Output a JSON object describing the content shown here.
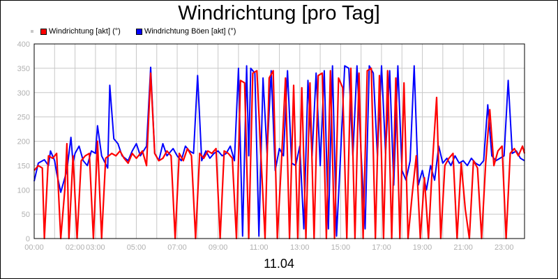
{
  "chart_data": {
    "type": "line",
    "title": "Windrichtung [pro Tag]",
    "xlabel": "11.04",
    "ylabel": "",
    "ylim": [
      0,
      400
    ],
    "xlim": [
      0,
      24
    ],
    "grid": true,
    "legend_placement": "top-left",
    "y_ticks": [
      "0",
      "50",
      "100",
      "150",
      "200",
      "250",
      "300",
      "350",
      "400"
    ],
    "x_ticks": [
      {
        "label": "00:00",
        "hour": 0
      },
      {
        "label": "02:00",
        "hour": 2
      },
      {
        "label": "03:00",
        "hour": 3
      },
      {
        "label": "05:00",
        "hour": 5
      },
      {
        "label": "07:00",
        "hour": 7
      },
      {
        "label": "09:00",
        "hour": 9
      },
      {
        "label": "11:00",
        "hour": 11
      },
      {
        "label": "13:00",
        "hour": 13
      },
      {
        "label": "15:00",
        "hour": 15
      },
      {
        "label": "17:00",
        "hour": 17
      },
      {
        "label": "19:00",
        "hour": 19
      },
      {
        "label": "21:00",
        "hour": 21
      },
      {
        "label": "23:00",
        "hour": 23
      }
    ],
    "grid_hours": [
      1,
      2,
      3,
      4,
      5,
      6,
      7,
      8,
      9,
      10,
      11,
      12,
      13,
      14,
      15,
      16,
      17,
      18,
      19,
      20,
      21,
      22,
      23
    ],
    "series": [
      {
        "name": "Windrichtung Böen [akt] (°)",
        "color": "#0000ff",
        "x": [
          0,
          0.2,
          0.5,
          0.7,
          0.8,
          1.0,
          1.1,
          1.3,
          1.6,
          1.8,
          1.9,
          2.0,
          2.2,
          2.4,
          2.6,
          2.8,
          3.0,
          3.1,
          3.3,
          3.6,
          3.7,
          3.9,
          4.1,
          4.3,
          4.6,
          4.8,
          5.0,
          5.2,
          5.5,
          5.7,
          5.9,
          6.1,
          6.3,
          6.5,
          6.8,
          7.0,
          7.2,
          7.4,
          7.6,
          7.8,
          8.0,
          8.2,
          8.4,
          8.6,
          8.8,
          9.0,
          9.2,
          9.4,
          9.6,
          9.8,
          10.0,
          10.2,
          10.4,
          10.5,
          10.6,
          10.8,
          11.0,
          11.2,
          11.4,
          11.6,
          11.8,
          12.0,
          12.2,
          12.4,
          12.6,
          12.8,
          13.0,
          13.2,
          13.4,
          13.6,
          13.8,
          14.0,
          14.2,
          14.4,
          14.6,
          14.8,
          15.0,
          15.2,
          15.4,
          15.6,
          15.8,
          16.0,
          16.2,
          16.4,
          16.6,
          16.8,
          17.0,
          17.2,
          17.4,
          17.6,
          17.8,
          18.0,
          18.2,
          18.4,
          18.6,
          18.8,
          19.0,
          19.2,
          19.4,
          19.6,
          19.8,
          20.0,
          20.2,
          20.4,
          20.6,
          20.8,
          21.0,
          21.2,
          21.4,
          21.6,
          21.8,
          22.0,
          22.2,
          22.4,
          22.6,
          22.8,
          23.0,
          23.2,
          23.4,
          23.6,
          23.8,
          24.0
        ],
        "values": [
          118,
          155,
          162,
          150,
          180,
          160,
          135,
          95,
          140,
          208,
          155,
          175,
          190,
          160,
          150,
          180,
          175,
          232,
          170,
          145,
          315,
          205,
          195,
          170,
          160,
          180,
          195,
          170,
          190,
          352,
          175,
          160,
          195,
          170,
          185,
          170,
          160,
          190,
          180,
          175,
          335,
          160,
          180,
          165,
          175,
          180,
          170,
          175,
          190,
          160,
          350,
          5,
          355,
          170,
          350,
          340,
          5,
          330,
          175,
          345,
          140,
          185,
          170,
          345,
          155,
          150,
          190,
          20,
          325,
          170,
          340,
          150,
          345,
          20,
          355,
          5,
          175,
          355,
          350,
          170,
          355,
          175,
          20,
          355,
          340,
          170,
          355,
          175,
          345,
          110,
          355,
          140,
          120,
          160,
          355,
          110,
          140,
          100,
          150,
          120,
          190,
          155,
          165,
          150,
          170,
          155,
          160,
          150,
          165,
          155,
          150,
          160,
          275,
          170,
          160,
          165,
          170,
          325,
          175,
          180,
          165,
          160
        ],
        "smooth_x": [
          0,
          24
        ]
      },
      {
        "name": "Windrichtung [akt] (°)",
        "color": "#ff0000",
        "x": [
          0,
          0.2,
          0.4,
          0.5,
          0.7,
          0.9,
          1.1,
          1.3,
          1.5,
          1.6,
          1.7,
          1.9,
          2.1,
          2.3,
          2.5,
          2.7,
          2.9,
          3.1,
          3.3,
          3.5,
          3.8,
          4.0,
          4.2,
          4.4,
          4.6,
          4.8,
          5.0,
          5.3,
          5.5,
          5.7,
          5.9,
          6.1,
          6.3,
          6.5,
          6.7,
          6.9,
          7.1,
          7.3,
          7.5,
          7.7,
          7.9,
          8.1,
          8.3,
          8.5,
          8.7,
          8.9,
          9.1,
          9.3,
          9.5,
          9.7,
          9.9,
          10.1,
          10.3,
          10.5,
          10.7,
          10.9,
          11.1,
          11.3,
          11.5,
          11.7,
          11.9,
          12.1,
          12.3,
          12.5,
          12.7,
          12.9,
          13.1,
          13.3,
          13.5,
          13.7,
          13.9,
          14.1,
          14.3,
          14.5,
          14.7,
          14.9,
          15.1,
          15.3,
          15.5,
          15.7,
          15.9,
          16.1,
          16.3,
          16.5,
          16.7,
          16.9,
          17.1,
          17.3,
          17.5,
          17.7,
          17.9,
          18.1,
          18.3,
          18.5,
          18.7,
          18.9,
          19.1,
          19.3,
          19.5,
          19.7,
          19.9,
          20.1,
          20.3,
          20.5,
          20.7,
          20.9,
          21.1,
          21.3,
          21.5,
          21.7,
          21.9,
          22.1,
          22.3,
          22.5,
          22.7,
          22.9,
          23.1,
          23.3,
          23.5,
          23.7,
          23.9,
          24.0
        ],
        "values": [
          140,
          150,
          145,
          0,
          170,
          165,
          175,
          0,
          100,
          195,
          0,
          170,
          0,
          160,
          170,
          175,
          0,
          200,
          0,
          165,
          175,
          170,
          180,
          165,
          155,
          175,
          165,
          180,
          150,
          340,
          175,
          160,
          165,
          180,
          170,
          0,
          175,
          160,
          185,
          170,
          0,
          175,
          165,
          180,
          175,
          185,
          0,
          180,
          175,
          165,
          0,
          325,
          320,
          0,
          340,
          345,
          170,
          0,
          330,
          345,
          0,
          155,
          330,
          0,
          315,
          0,
          310,
          0,
          320,
          0,
          335,
          340,
          0,
          345,
          0,
          330,
          310,
          0,
          350,
          0,
          340,
          0,
          345,
          350,
          0,
          335,
          0,
          345,
          0,
          330,
          0,
          320,
          0,
          90,
          170,
          0,
          125,
          0,
          160,
          290,
          0,
          150,
          165,
          175,
          0,
          155,
          60,
          0,
          160,
          145,
          0,
          155,
          265,
          150,
          180,
          190,
          0,
          175,
          185,
          170,
          190,
          175
        ]
      }
    ]
  }
}
